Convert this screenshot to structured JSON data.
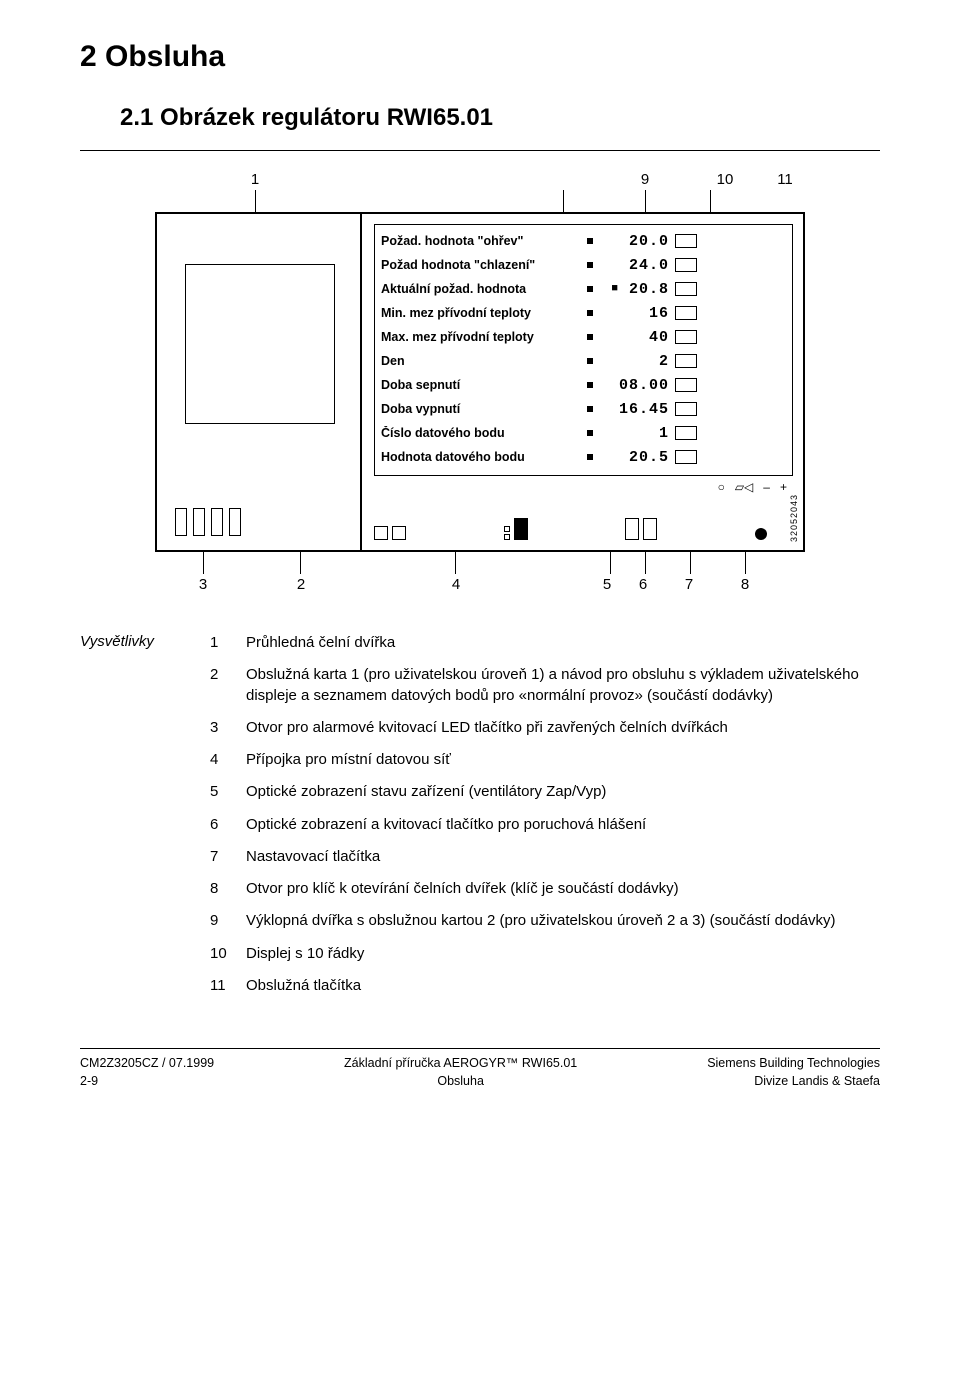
{
  "chapter_title": "2 Obsluha",
  "section_title": "2.1  Obrázek regulátoru RWI65.01",
  "diagram": {
    "callouts_top": [
      "1",
      "9",
      "10",
      "11"
    ],
    "callouts_bottom": [
      "3",
      "2",
      "4",
      "5",
      "6",
      "7",
      "8"
    ],
    "side_code": "32052043",
    "params": [
      {
        "label": "Požad. hodnota \"ohřev\"",
        "value": "20.0"
      },
      {
        "label": "Požad hodnota \"chlazení\"",
        "value": "24.0"
      },
      {
        "label": "Aktuální požad. hodnota",
        "value": "20.8",
        "marker": "■"
      },
      {
        "label": "Min. mez přívodní teploty",
        "value": "16"
      },
      {
        "label": "Max. mez přívodní teploty",
        "value": "40"
      },
      {
        "label": "Den",
        "value": "2"
      },
      {
        "label": "Doba sepnutí",
        "value": "08.00"
      },
      {
        "label": "Doba vypnutí",
        "value": "16.45"
      },
      {
        "label": "Číslo datového bodu",
        "value": "1"
      },
      {
        "label": "Hodnota datového bodu",
        "value": "20.5"
      }
    ],
    "symbol_row": [
      "○",
      "▱◁",
      "–",
      "+"
    ]
  },
  "legend": {
    "label": "Vysvětlivky",
    "items": [
      {
        "n": "1",
        "text": "Průhledná čelní dvířka"
      },
      {
        "n": "2",
        "text": "Obslužná karta 1 (pro uživatelskou úroveň 1) a návod pro obsluhu s výkladem uživatelského displeje a seznamem datových bodů  pro «normální provoz»         (součástí dodávky)"
      },
      {
        "n": "3",
        "text": "Otvor pro alarmové kvitovací LED tlačítko při zavřených čelních dvířkách"
      },
      {
        "n": "4",
        "text": "Přípojka pro místní datovou síť"
      },
      {
        "n": "5",
        "text": "Optické zobrazení stavu zařízení (ventilátory Zap/Vyp)"
      },
      {
        "n": "6",
        "text": "Optické zobrazení a kvitovací tlačítko pro poruchová hlášení"
      },
      {
        "n": "7",
        "text": "Nastavovací tlačítka"
      },
      {
        "n": "8",
        "text": "Otvor pro klíč k otevírání čelních dvířek (klíč je součástí dodávky)"
      },
      {
        "n": "9",
        "text": "Výklopná dvířka s obslužnou kartou 2 (pro uživatelskou úroveň 2 a 3) (součástí dodávky)"
      },
      {
        "n": "10",
        "text": "Displej s 10 řádky"
      },
      {
        "n": "11",
        "text": "Obslužná tlačítka"
      }
    ]
  },
  "footer": {
    "left_line1": "CM2Z3205CZ / 07.1999",
    "left_line2": "2-9",
    "center_line1": "Základní příručka AEROGYR™ RWI65.01",
    "center_line2": "Obsluha",
    "right_line1": "Siemens Building Technologies",
    "right_line2": "Divize Landis & Staefa"
  }
}
